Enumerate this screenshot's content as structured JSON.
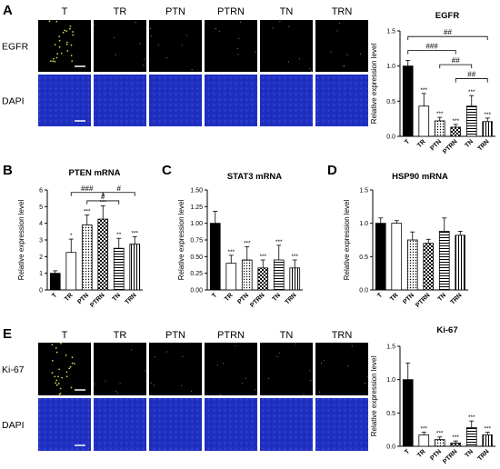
{
  "panels": {
    "A": {
      "label": "A",
      "lanes": [
        "T",
        "TR",
        "PTN",
        "PTRN",
        "TN",
        "TRN"
      ],
      "rows": [
        "EGFR",
        "DAPI"
      ]
    },
    "E": {
      "label": "E",
      "lanes": [
        "T",
        "TR",
        "PTN",
        "PTRN",
        "TN",
        "TRN"
      ],
      "rows": [
        "Ki-67",
        "DAPI"
      ]
    }
  },
  "colors": {
    "micro_bg": "#000000",
    "dapi": "#1f2fc0",
    "signal": "#e8e85a",
    "bar_black": "#000000",
    "bar_white": "#ffffff"
  },
  "chart_data": [
    {
      "id": "egfr",
      "panel_label": "",
      "type": "bar",
      "title": "EGFR",
      "ylabel": "Relative expression level",
      "categories": [
        "T",
        "TR",
        "PTN",
        "PTRN",
        "TN",
        "TRN"
      ],
      "values": [
        1.0,
        0.43,
        0.22,
        0.13,
        0.43,
        0.21
      ],
      "errors": [
        0.08,
        0.18,
        0.05,
        0.04,
        0.15,
        0.05
      ],
      "annotations": [
        "",
        "***",
        "***",
        "***",
        "***",
        "***"
      ],
      "ylim": [
        0,
        1.5
      ],
      "yticks": [
        "0.0",
        "0.5",
        "1.0",
        "1.5"
      ],
      "brackets": [
        {
          "from": 0,
          "to": 5,
          "label": "##",
          "y": 1.42
        },
        {
          "from": 0,
          "to": 3,
          "label": "###",
          "y": 1.22
        },
        {
          "from": 2,
          "to": 4,
          "label": "##",
          "y": 1.02
        },
        {
          "from": 3,
          "to": 5,
          "label": "##",
          "y": 0.82
        }
      ]
    },
    {
      "id": "pten",
      "panel_label": "B",
      "type": "bar",
      "title": "PTEN mRNA",
      "ylabel": "Relative expression level",
      "categories": [
        "T",
        "TR",
        "PTN",
        "PTRN",
        "TN",
        "TRN"
      ],
      "values": [
        1.0,
        2.25,
        3.9,
        4.25,
        2.5,
        2.75
      ],
      "errors": [
        0.15,
        0.8,
        0.6,
        0.8,
        0.6,
        0.45
      ],
      "annotations": [
        "",
        "*",
        "***",
        "***",
        "**",
        "***"
      ],
      "ylim": [
        0,
        6
      ],
      "yticks": [
        "0",
        "1",
        "2",
        "3",
        "4",
        "5",
        "6"
      ],
      "brackets": [
        {
          "from": 1,
          "to": 3,
          "label": "###",
          "y": 5.85
        },
        {
          "from": 2,
          "to": 4,
          "label": "#",
          "y": 5.35
        },
        {
          "from": 3,
          "to": 5,
          "label": "#",
          "y": 5.85
        }
      ]
    },
    {
      "id": "stat3",
      "panel_label": "C",
      "type": "bar",
      "title": "STAT3 mRNA",
      "ylabel": "Relative expression level",
      "categories": [
        "T",
        "TR",
        "PTN",
        "PTRN",
        "TN",
        "TRN"
      ],
      "values": [
        1.0,
        0.4,
        0.45,
        0.33,
        0.45,
        0.33
      ],
      "errors": [
        0.18,
        0.12,
        0.2,
        0.12,
        0.22,
        0.12
      ],
      "annotations": [
        "",
        "***",
        "***",
        "***",
        "***",
        "***"
      ],
      "ylim": [
        0,
        1.5
      ],
      "yticks": [
        "0.00",
        "0.25",
        "0.50",
        "0.75",
        "1.00",
        "1.25",
        "1.50"
      ],
      "brackets": []
    },
    {
      "id": "hsp90",
      "panel_label": "D",
      "type": "bar",
      "title": "HSP90 mRNA",
      "ylabel": "Relative expression level",
      "categories": [
        "T",
        "TR",
        "PTN",
        "PTRN",
        "TN",
        "TRN"
      ],
      "values": [
        1.0,
        1.0,
        0.75,
        0.7,
        0.88,
        0.82
      ],
      "errors": [
        0.08,
        0.04,
        0.12,
        0.06,
        0.2,
        0.06
      ],
      "annotations": [
        "",
        "",
        "",
        "",
        "",
        ""
      ],
      "ylim": [
        0,
        1.5
      ],
      "yticks": [
        "0.0",
        "0.5",
        "1.0",
        "1.5"
      ],
      "brackets": []
    },
    {
      "id": "ki67",
      "panel_label": "",
      "type": "bar",
      "title": "Ki-67",
      "ylabel": "Relative expression level",
      "categories": [
        "T",
        "TR",
        "PTN",
        "PTRN",
        "TN",
        "TRN"
      ],
      "values": [
        1.0,
        0.17,
        0.1,
        0.05,
        0.28,
        0.17
      ],
      "errors": [
        0.25,
        0.04,
        0.04,
        0.03,
        0.1,
        0.04
      ],
      "annotations": [
        "",
        "***",
        "***",
        "***",
        "***",
        "***"
      ],
      "ylim": [
        0,
        1.5
      ],
      "yticks": [
        "0.0",
        "0.5",
        "1.0",
        "1.5"
      ],
      "brackets": []
    }
  ]
}
